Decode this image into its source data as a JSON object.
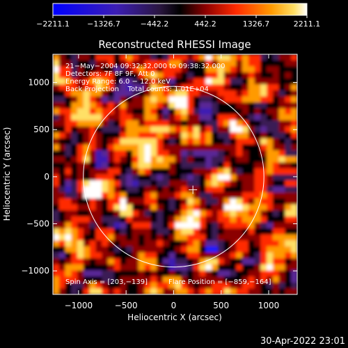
{
  "footer_date": "30-Apr-2022 23:01",
  "colorbar": {
    "ticks": [
      -2211.1,
      -1326.7,
      -442.2,
      442.2,
      1326.7,
      2211.1
    ],
    "tick_labels": [
      "−2211.1",
      "−1326.7",
      "−442.2",
      "442.2",
      "1326.7",
      "2211.1"
    ],
    "range": [
      -2211.1,
      2211.1
    ]
  },
  "chart_data": {
    "type": "heatmap",
    "title": "Reconstructed RHESSI Image",
    "xlabel": "Heliocentric X (arcsec)",
    "ylabel": "Heliocentric Y (arcsec)",
    "xlim": [
      -1270,
      1300
    ],
    "ylim": [
      -1250,
      1300
    ],
    "x_ticks": [
      -1000,
      -500,
      0,
      500,
      1000
    ],
    "y_ticks": [
      -1000,
      -500,
      0,
      500,
      1000
    ],
    "x_tick_labels": [
      "−1000",
      "−500",
      "0",
      "500",
      "1000"
    ],
    "y_tick_labels": [
      "−1000",
      "−500",
      "0",
      "500",
      "1000"
    ],
    "annotations": [
      "21−May−2004 09:32:32.000 to 09:38:32.000",
      "Detectors: 7F 8F 9F, Att 0",
      "Energy Range: 6.0 − 12.0 keV",
      "Back Projection    Total counts: 1.01E+04"
    ],
    "spin_axis": "Spin Axis = [203,−139]",
    "flare_position": "Flare Position = [−859,−164]",
    "solar_disk": {
      "center": [
        0,
        0
      ],
      "radius_arcsec": 950
    },
    "crosshair_arcsec": [
      203,
      -139
    ],
    "colormap": [
      "#1e1eff",
      "#3c1eb4",
      "#5a2896",
      "#3a1a55",
      "#000000",
      "#8b0000",
      "#ff2a00",
      "#ff9a00",
      "#ffe066",
      "#ffffff"
    ],
    "bright_sources": [
      {
        "x": -859,
        "y": -164,
        "value": 2211.1
      },
      {
        "x": 960,
        "y": -10,
        "value": 1700
      },
      {
        "x": 640,
        "y": -300,
        "value": 1500
      },
      {
        "x": -480,
        "y": -370,
        "value": 1600
      },
      {
        "x": 70,
        "y": 800,
        "value": 1400
      },
      {
        "x": -230,
        "y": 330,
        "value": 1300
      },
      {
        "x": 620,
        "y": 500,
        "value": 1300
      },
      {
        "x": -1060,
        "y": -760,
        "value": 1200
      },
      {
        "x": 420,
        "y": -900,
        "value": 1300
      },
      {
        "x": 130,
        "y": -560,
        "value": 1100
      }
    ],
    "dark_sources": [
      {
        "x": 380,
        "y": -780,
        "value": -2211.1
      },
      {
        "x": -760,
        "y": 180,
        "value": -1200
      },
      {
        "x": -220,
        "y": -620,
        "value": -1400
      },
      {
        "x": 960,
        "y": -560,
        "value": -1300
      },
      {
        "x": 110,
        "y": 220,
        "value": -1000
      }
    ]
  }
}
